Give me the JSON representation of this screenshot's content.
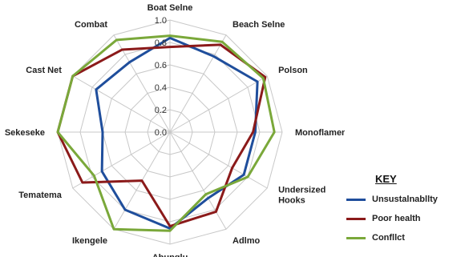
{
  "chart_data": {
    "type": "radar",
    "title": "",
    "axes": [
      "Boat Seine",
      "Beach Seine",
      "Poison",
      "Monofilament",
      "Undersized Hooks",
      "Adimo",
      "Abunglu",
      "Ikengele",
      "Tematema",
      "Sekeseke",
      "Cast Net",
      "Combat"
    ],
    "axis_labels": [
      "Boat Selne",
      "Beach Selne",
      "Polson",
      "Monoflament",
      "Undersized\nHooks",
      "Adlmo",
      "Abunglu",
      "Ikengele",
      "Tematema",
      "Sekeseke",
      "Cast Net",
      "Combat"
    ],
    "rmin": 0,
    "rmax": 1.0,
    "ticks": [
      "0.0",
      "0.2",
      "0.4",
      "0.6",
      "0.8",
      "1.0"
    ],
    "tick_values": [
      0.0,
      0.2,
      0.4,
      0.6,
      0.8,
      1.0
    ],
    "grid": true,
    "legend_position": "right",
    "legend_title": "KEY",
    "series": [
      {
        "name": "Unsustalnabllty",
        "color": "#1f4e9c",
        "values": [
          0.84,
          0.78,
          0.9,
          0.76,
          0.76,
          0.68,
          0.86,
          0.8,
          0.7,
          0.6,
          0.76,
          0.72
        ]
      },
      {
        "name": "Poor health",
        "color": "#8b1a1a",
        "values": [
          0.76,
          0.9,
          0.98,
          0.74,
          0.64,
          0.82,
          0.84,
          0.5,
          0.9,
          1.0,
          1.0,
          0.85
        ]
      },
      {
        "name": "Confllct",
        "color": "#7aa83a",
        "values": [
          0.86,
          0.93,
          0.96,
          0.93,
          0.8,
          0.64,
          0.88,
          1.0,
          0.78,
          1.0,
          1.0,
          0.95
        ]
      }
    ]
  }
}
